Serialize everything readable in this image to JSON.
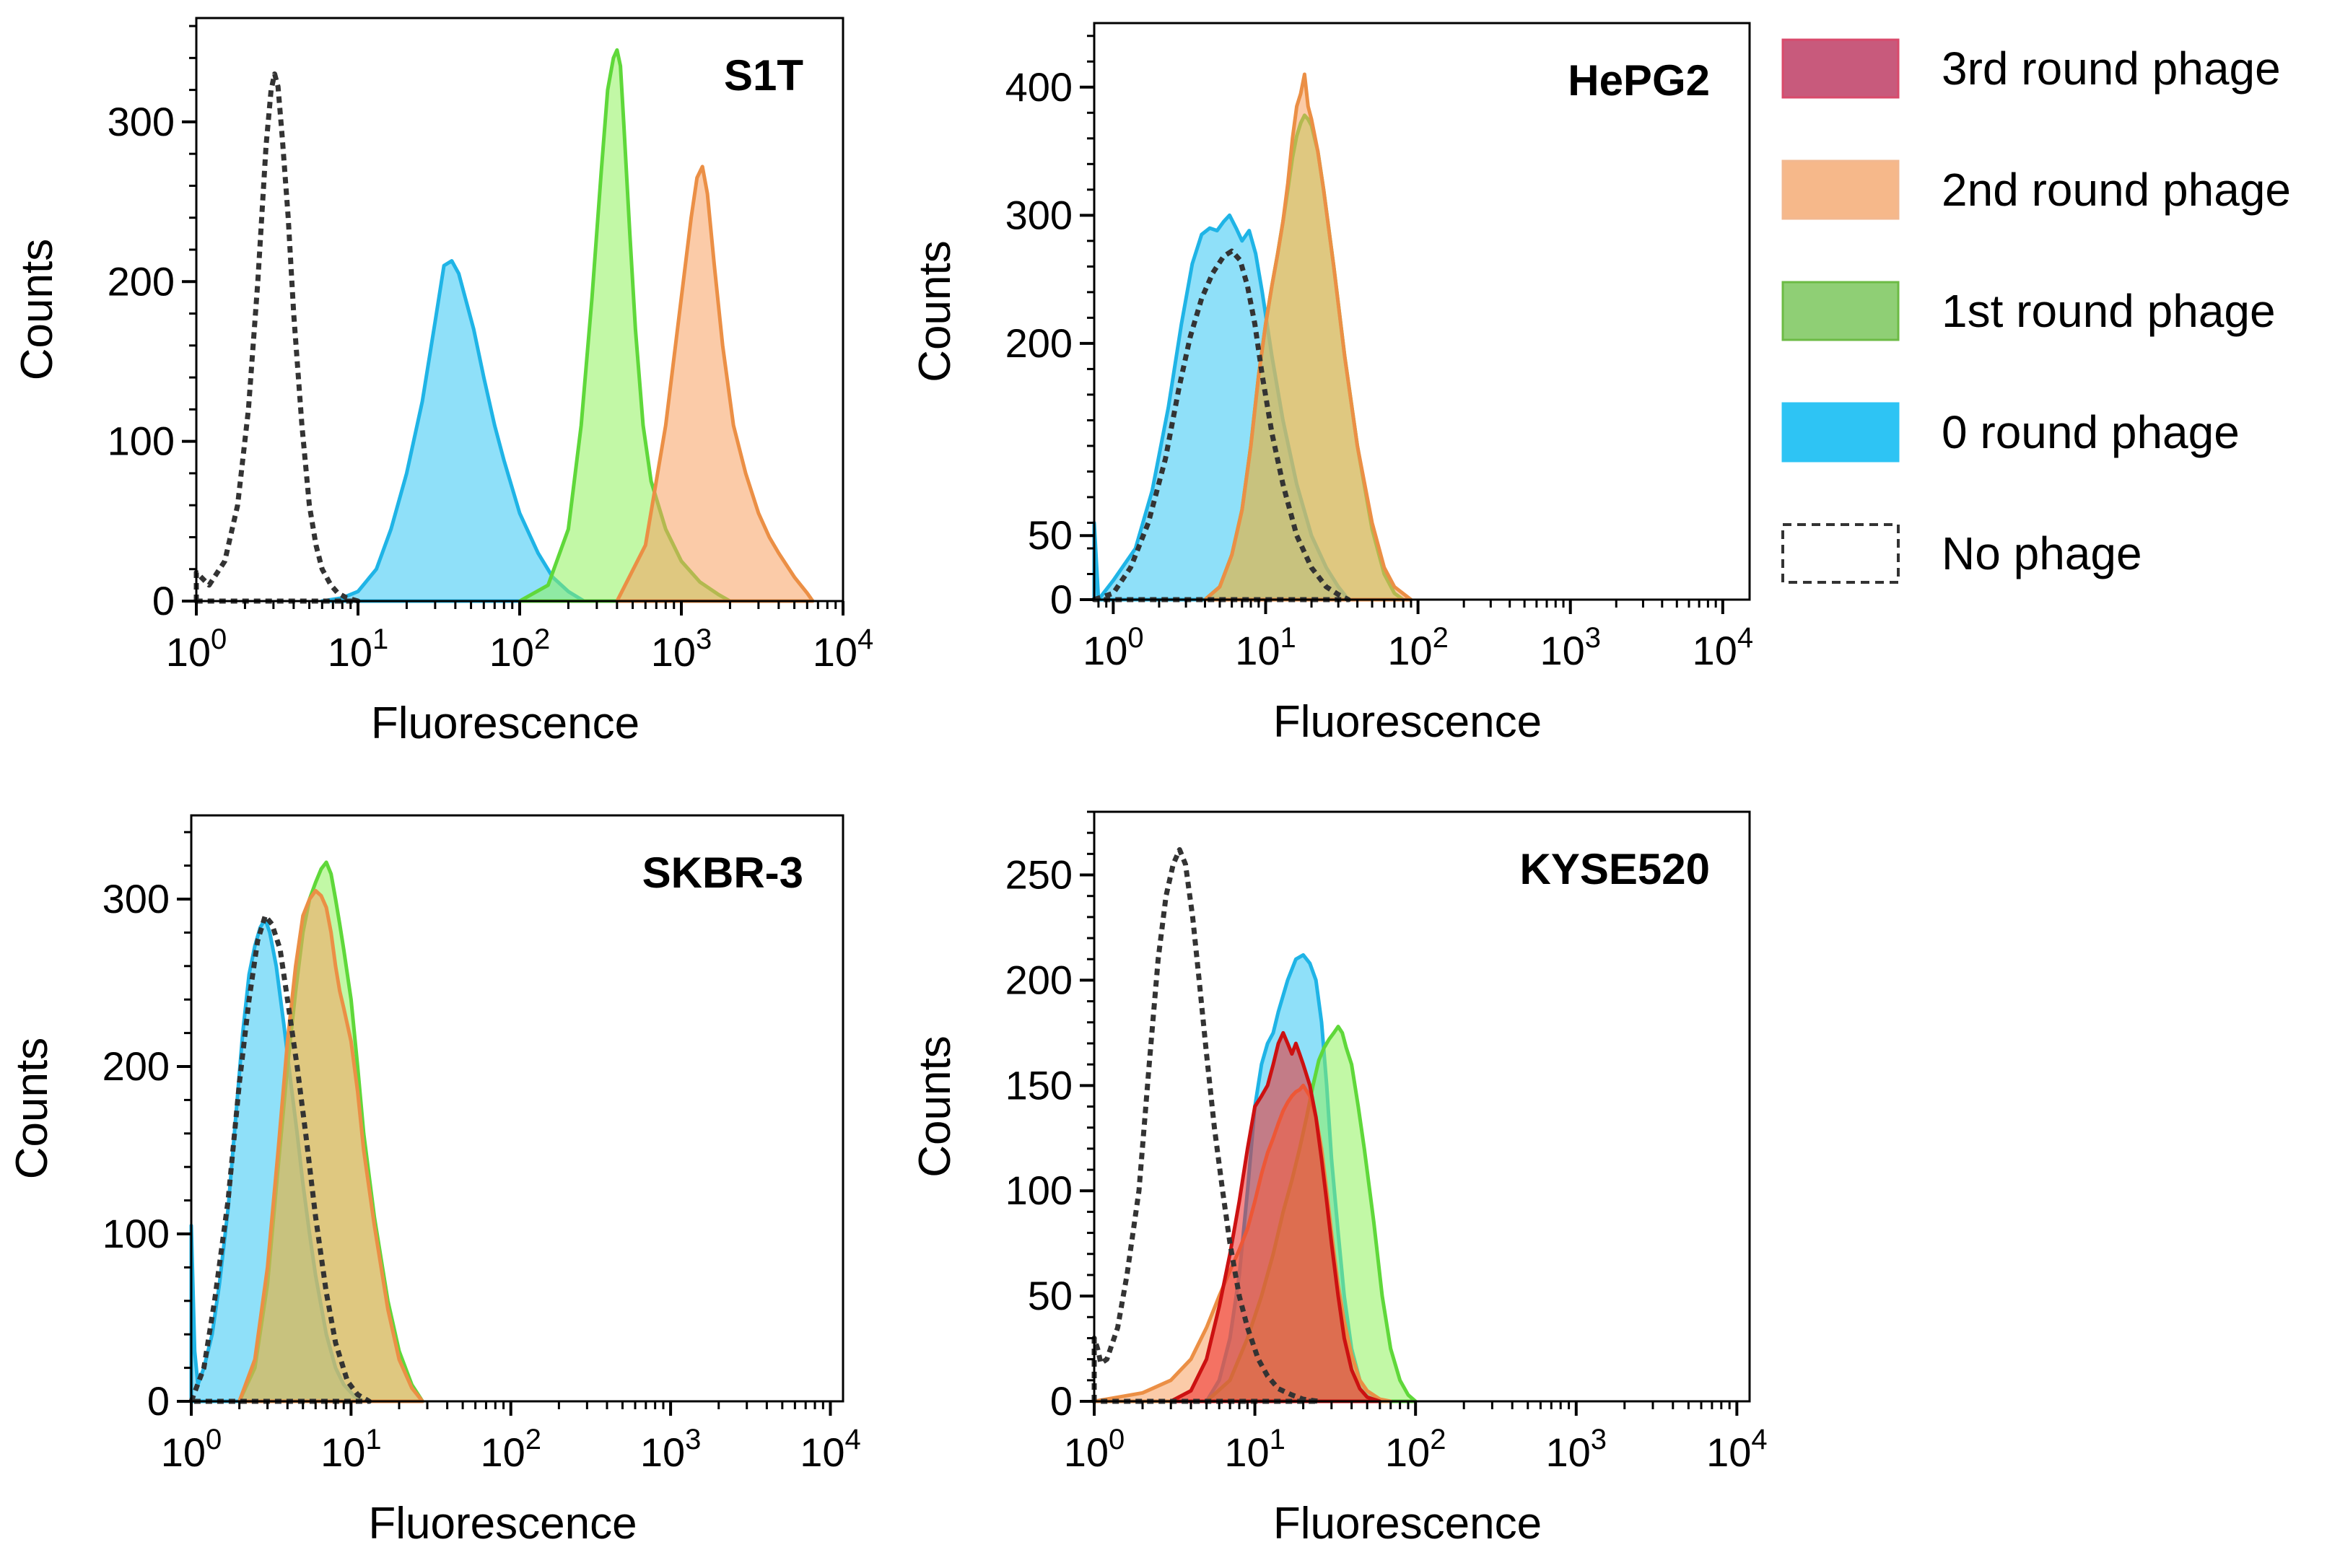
{
  "chart_data": [
    {
      "type": "area",
      "title": "S1T",
      "xlabel": "Fluorescence",
      "ylabel": "Counts",
      "xscale": "log",
      "xlim": [
        1,
        10000
      ],
      "ylim": [
        0,
        365
      ],
      "xticks": [
        {
          "base": "10",
          "exp": "0"
        },
        {
          "base": "10",
          "exp": "1"
        },
        {
          "base": "10",
          "exp": "2"
        },
        {
          "base": "10",
          "exp": "3"
        },
        {
          "base": "10",
          "exp": "4"
        }
      ],
      "yticks": [
        "0",
        "100",
        "200",
        "300"
      ],
      "yticks_values": [
        0,
        100,
        200,
        300
      ],
      "series": [
        {
          "name": "No phage",
          "x": [
            1.0,
            1.2,
            1.5,
            1.8,
            2.1,
            2.4,
            2.7,
            2.9,
            3.05,
            3.2,
            3.4,
            3.7,
            4.0,
            4.5,
            5.0,
            5.5,
            6.0,
            6.8,
            7.5,
            8.5,
            10.0
          ],
          "y": [
            18,
            10,
            25,
            60,
            120,
            200,
            285,
            320,
            330,
            322,
            290,
            240,
            180,
            110,
            60,
            35,
            20,
            10,
            5,
            2,
            0
          ]
        },
        {
          "name": "0 round phage",
          "x": [
            6,
            8,
            10,
            13,
            16,
            20,
            25,
            30,
            34,
            38,
            42,
            46,
            52,
            60,
            70,
            80,
            100,
            130,
            160,
            200,
            250
          ],
          "y": [
            0,
            2,
            6,
            20,
            45,
            80,
            125,
            175,
            210,
            213,
            205,
            190,
            170,
            140,
            110,
            88,
            55,
            30,
            15,
            6,
            0
          ]
        },
        {
          "name": "1st round phage",
          "x": [
            100,
            150,
            200,
            240,
            280,
            320,
            350,
            380,
            400,
            420,
            440,
            480,
            520,
            580,
            650,
            800,
            1000,
            1300,
            1700,
            2000
          ],
          "y": [
            0,
            10,
            45,
            110,
            190,
            270,
            320,
            340,
            345,
            335,
            300,
            230,
            170,
            110,
            75,
            45,
            25,
            12,
            4,
            0
          ]
        },
        {
          "name": "2nd round phage",
          "x": [
            400,
            600,
            800,
            1000,
            1150,
            1250,
            1350,
            1450,
            1600,
            1800,
            2100,
            2500,
            3000,
            3500,
            4000,
            5000,
            6000,
            6500
          ],
          "y": [
            0,
            35,
            110,
            190,
            240,
            265,
            272,
            255,
            210,
            160,
            110,
            80,
            55,
            40,
            30,
            15,
            5,
            0
          ]
        }
      ]
    },
    {
      "type": "area",
      "title": "HePG2",
      "xlabel": "Fluorescence",
      "ylabel": "Counts",
      "xscale": "log",
      "xlim": [
        0.75,
        15000
      ],
      "ylim": [
        0,
        450
      ],
      "xticks": [
        {
          "base": "10",
          "exp": "0"
        },
        {
          "base": "10",
          "exp": "1"
        },
        {
          "base": "10",
          "exp": "2"
        },
        {
          "base": "10",
          "exp": "3"
        },
        {
          "base": "10",
          "exp": "4"
        }
      ],
      "yticks": [
        "0",
        "50",
        "200",
        "300",
        "400"
      ],
      "yticks_values": [
        0,
        50,
        200,
        300,
        400
      ],
      "series": [
        {
          "name": "No phage",
          "x": [
            0.75,
            1.0,
            1.3,
            1.7,
            2.2,
            2.7,
            3.2,
            3.8,
            4.5,
            5.3,
            6.0,
            6.8,
            7.6,
            8.5,
            9.5,
            11,
            13,
            16,
            20,
            25,
            30,
            35
          ],
          "y": [
            0,
            5,
            25,
            60,
            110,
            165,
            205,
            235,
            255,
            268,
            272,
            265,
            245,
            215,
            175,
            130,
            90,
            50,
            25,
            10,
            4,
            0
          ]
        },
        {
          "name": "0 round phage",
          "x": [
            0.75,
            0.8,
            1.0,
            1.4,
            1.8,
            2.3,
            2.8,
            3.3,
            3.8,
            4.3,
            4.8,
            5.3,
            5.8,
            6.4,
            7.0,
            7.8,
            8.6,
            9.5,
            11,
            13,
            16,
            20,
            25,
            30,
            35
          ],
          "y": [
            60,
            0,
            15,
            40,
            85,
            150,
            215,
            262,
            285,
            290,
            288,
            295,
            300,
            290,
            280,
            288,
            270,
            240,
            190,
            140,
            90,
            50,
            25,
            10,
            0
          ]
        },
        {
          "name": "1st round phage",
          "x": [
            4,
            5,
            6,
            7,
            8,
            9,
            10,
            11,
            12,
            13,
            14,
            15,
            16,
            17,
            18,
            19,
            20,
            22,
            24,
            28,
            33,
            40,
            50,
            60,
            70,
            80
          ],
          "y": [
            0,
            10,
            35,
            70,
            120,
            175,
            215,
            245,
            270,
            295,
            320,
            345,
            362,
            372,
            378,
            375,
            370,
            350,
            320,
            260,
            190,
            120,
            55,
            20,
            5,
            0
          ]
        },
        {
          "name": "2nd round phage",
          "x": [
            4,
            5,
            6,
            7,
            8,
            9,
            10,
            11,
            12,
            13,
            14,
            15,
            16,
            17,
            18,
            19,
            20,
            22,
            24,
            28,
            33,
            40,
            50,
            60,
            70,
            90
          ],
          "y": [
            0,
            10,
            35,
            70,
            120,
            175,
            215,
            245,
            270,
            295,
            325,
            360,
            385,
            395,
            410,
            385,
            375,
            350,
            320,
            260,
            190,
            120,
            60,
            25,
            10,
            0
          ]
        }
      ]
    },
    {
      "type": "area",
      "title": "SKBR-3",
      "xlabel": "Fluorescence",
      "ylabel": "Counts",
      "xscale": "log",
      "xlim": [
        1,
        12000
      ],
      "ylim": [
        0,
        350
      ],
      "xticks": [
        {
          "base": "10",
          "exp": "0"
        },
        {
          "base": "10",
          "exp": "1"
        },
        {
          "base": "10",
          "exp": "2"
        },
        {
          "base": "10",
          "exp": "3"
        },
        {
          "base": "10",
          "exp": "4"
        }
      ],
      "yticks": [
        "0",
        "100",
        "200",
        "300"
      ],
      "yticks_values": [
        0,
        100,
        200,
        300
      ],
      "series": [
        {
          "name": "No phage",
          "x": [
            1.0,
            1.2,
            1.4,
            1.7,
            2.0,
            2.3,
            2.6,
            2.9,
            3.2,
            3.6,
            4.0,
            4.6,
            5.2,
            6.0,
            7.0,
            8.0,
            9.5,
            11,
            13
          ],
          "y": [
            0,
            20,
            60,
            120,
            190,
            240,
            275,
            290,
            285,
            270,
            240,
            200,
            160,
            110,
            65,
            35,
            12,
            4,
            0
          ]
        },
        {
          "name": "0 round phage",
          "x": [
            1.0,
            1.05,
            1.1,
            1.2,
            1.35,
            1.5,
            1.7,
            1.9,
            2.1,
            2.3,
            2.5,
            2.7,
            2.9,
            3.1,
            3.4,
            3.8,
            4.2,
            4.6,
            5.0,
            5.5,
            6.0,
            7.0,
            8.0,
            9.0,
            10.5,
            12
          ],
          "y": [
            105,
            30,
            10,
            20,
            40,
            70,
            115,
            170,
            220,
            255,
            272,
            283,
            288,
            280,
            260,
            225,
            190,
            160,
            130,
            100,
            75,
            40,
            20,
            10,
            3,
            0
          ]
        },
        {
          "name": "1st round phage",
          "x": [
            2,
            2.5,
            3,
            3.5,
            4,
            4.5,
            5,
            5.5,
            6,
            6.5,
            7,
            7.5,
            8,
            8.5,
            9,
            10,
            11,
            12,
            14,
            17,
            20,
            24,
            28
          ],
          "y": [
            0,
            20,
            70,
            140,
            200,
            245,
            280,
            300,
            310,
            318,
            322,
            315,
            300,
            285,
            270,
            240,
            200,
            160,
            110,
            60,
            30,
            10,
            0
          ]
        },
        {
          "name": "2nd round phage",
          "x": [
            2,
            2.5,
            3,
            3.5,
            4,
            4.5,
            5,
            5.5,
            6,
            6.5,
            7,
            7.5,
            8,
            8.5,
            9,
            10,
            11,
            12,
            14,
            17,
            20,
            24,
            28
          ],
          "y": [
            0,
            25,
            80,
            150,
            215,
            260,
            290,
            300,
            305,
            302,
            295,
            280,
            260,
            245,
            235,
            215,
            185,
            150,
            105,
            55,
            25,
            8,
            0
          ]
        }
      ]
    },
    {
      "type": "area",
      "title": "KYSE520",
      "xlabel": "Fluorescence",
      "ylabel": "Counts",
      "xscale": "log",
      "xlim": [
        1,
        12000
      ],
      "ylim": [
        0,
        280
      ],
      "xticks": [
        {
          "base": "10",
          "exp": "0"
        },
        {
          "base": "10",
          "exp": "1"
        },
        {
          "base": "10",
          "exp": "2"
        },
        {
          "base": "10",
          "exp": "3"
        },
        {
          "base": "10",
          "exp": "4"
        }
      ],
      "yticks": [
        "0",
        "50",
        "100",
        "150",
        "200",
        "250"
      ],
      "yticks_values": [
        0,
        50,
        100,
        150,
        200,
        250
      ],
      "series": [
        {
          "name": "No phage",
          "x": [
            1.0,
            1.05,
            1.1,
            1.2,
            1.4,
            1.6,
            1.9,
            2.2,
            2.5,
            2.8,
            3.1,
            3.4,
            3.7,
            4.1,
            4.5,
            5.0,
            5.6,
            6.3,
            7.0,
            8.0,
            9.0,
            10.5,
            12,
            14,
            17,
            20,
            25
          ],
          "y": [
            30,
            25,
            18,
            20,
            35,
            60,
            100,
            160,
            210,
            240,
            255,
            262,
            255,
            230,
            200,
            165,
            130,
            100,
            75,
            50,
            35,
            20,
            12,
            6,
            3,
            1,
            0
          ]
        },
        {
          "name": "0 round phage",
          "x": [
            5,
            6,
            7,
            8,
            9,
            10,
            11,
            12,
            13,
            14,
            16,
            18,
            20,
            22,
            24,
            26,
            28,
            30,
            33,
            36,
            40,
            45,
            50,
            60
          ],
          "y": [
            0,
            10,
            30,
            60,
            100,
            140,
            160,
            170,
            175,
            185,
            200,
            210,
            212,
            208,
            200,
            180,
            150,
            115,
            80,
            50,
            25,
            10,
            4,
            0
          ]
        },
        {
          "name": "1st round phage",
          "x": [
            5,
            7,
            9,
            11,
            13,
            15,
            17,
            19,
            21,
            23,
            25,
            27,
            29,
            31,
            33,
            35,
            37,
            40,
            44,
            48,
            55,
            62,
            70,
            80,
            90,
            100
          ],
          "y": [
            0,
            10,
            30,
            50,
            70,
            90,
            105,
            120,
            135,
            150,
            162,
            168,
            172,
            175,
            178,
            175,
            168,
            160,
            140,
            120,
            85,
            50,
            25,
            10,
            3,
            0
          ]
        },
        {
          "name": "2nd round phage",
          "x": [
            1.0,
            2,
            3,
            4,
            5,
            6,
            7,
            8,
            9,
            10,
            11,
            12,
            13,
            14,
            15,
            16,
            17,
            18,
            19,
            20,
            22,
            24,
            26,
            28,
            30,
            33,
            36,
            40,
            45,
            50,
            60,
            70
          ],
          "y": [
            0,
            4,
            10,
            20,
            35,
            50,
            62,
            72,
            82,
            95,
            108,
            118,
            125,
            132,
            138,
            142,
            145,
            147,
            148,
            150,
            145,
            135,
            120,
            100,
            80,
            55,
            38,
            22,
            10,
            5,
            1,
            0
          ]
        },
        {
          "name": "3rd round phage",
          "x": [
            3,
            4,
            5,
            6,
            7,
            8,
            9,
            10,
            11,
            12,
            13,
            14,
            15,
            16,
            17,
            18,
            19,
            20,
            22,
            24,
            26,
            28,
            30,
            33,
            36,
            40,
            45,
            50,
            60
          ],
          "y": [
            0,
            5,
            20,
            45,
            70,
            95,
            120,
            140,
            145,
            150,
            160,
            170,
            175,
            170,
            165,
            170,
            165,
            160,
            150,
            135,
            115,
            95,
            75,
            50,
            30,
            15,
            6,
            2,
            0
          ]
        }
      ]
    }
  ],
  "legend": {
    "entries": [
      {
        "label": "3rd round phage",
        "fill": "#c85a7c",
        "stroke": "#d94a6b",
        "dashed": false
      },
      {
        "label": "2nd round phage",
        "fill": "#f6b88a",
        "stroke": "#f2b890",
        "dashed": false
      },
      {
        "label": "1st round phage",
        "fill": "#8fcf75",
        "stroke": "#6cbb45",
        "dashed": false
      },
      {
        "label": "0 round phage",
        "fill": "#2ec4f4",
        "stroke": "#2ec4f4",
        "dashed": false
      },
      {
        "label": "No phage",
        "fill": "none",
        "stroke": "#333333",
        "dashed": true
      }
    ]
  },
  "colors": {
    "No phage": {
      "fill": "none",
      "stroke": "#333333"
    },
    "0 round phage": {
      "fill": "#33c6f4",
      "stroke": "#1fb4e6"
    },
    "1st round phage": {
      "fill": "#8ff25c",
      "stroke": "#5fd83a"
    },
    "2nd round phage": {
      "fill": "#f7a060",
      "stroke": "#eb8f45"
    },
    "3rd round phage": {
      "fill": "#ee2a2a",
      "stroke": "#cc1111"
    }
  },
  "series_order": [
    "0 round phage",
    "1st round phage",
    "2nd round phage",
    "3rd round phage",
    "No phage"
  ]
}
